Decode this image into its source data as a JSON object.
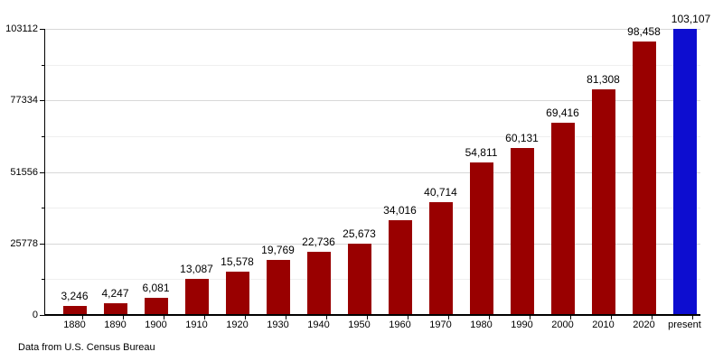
{
  "chart_data": {
    "type": "bar",
    "title": "",
    "xlabel": "",
    "ylabel": "",
    "categories": [
      "1880",
      "1890",
      "1900",
      "1910",
      "1920",
      "1930",
      "1940",
      "1950",
      "1960",
      "1970",
      "1980",
      "1990",
      "2000",
      "2010",
      "2020",
      "present"
    ],
    "values": [
      3246,
      4247,
      6081,
      13087,
      15578,
      19769,
      22736,
      25673,
      34016,
      40714,
      54811,
      60131,
      69416,
      81308,
      98458,
      103107
    ],
    "value_labels": [
      "3,246",
      "4,247",
      "6,081",
      "13,087",
      "15,578",
      "19,769",
      "22,736",
      "25,673",
      "34,016",
      "40,714",
      "54,811",
      "60,131",
      "69,416",
      "81,308",
      "98,458",
      "103,107"
    ],
    "ylim": [
      0,
      103112
    ],
    "yticks": [
      0,
      25778,
      51556,
      77334,
      103112
    ],
    "ytick_labels": [
      "0",
      "25778",
      "51556",
      "77334",
      "103112"
    ],
    "minor_grid": true,
    "grid": true,
    "legend": null,
    "bar_color": "#990000",
    "highlight_color": "#0d0dd0",
    "highlight_index": 15,
    "axis_color": "#000000",
    "footer": "Data from U.S. Census Bureau"
  }
}
